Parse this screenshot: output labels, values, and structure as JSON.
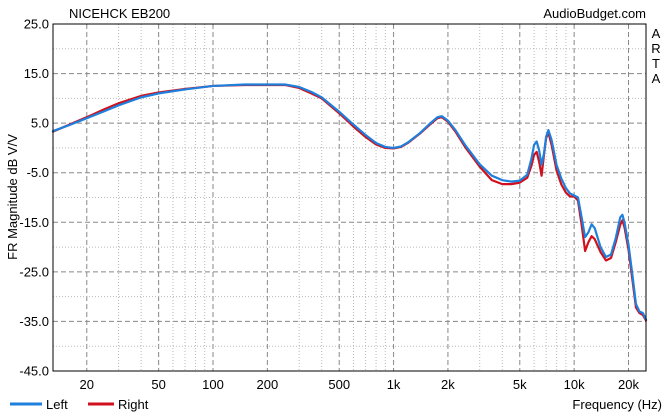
{
  "chart_data": {
    "type": "line",
    "title": "NICEHCK EB200",
    "watermark": "AudioBudget.com",
    "side_label": "ARTA",
    "xlabel": "Frequency (Hz)",
    "ylabel": "FR Magnitude dB V/V",
    "x_scale": "log",
    "xlim": [
      13,
      25000
    ],
    "ylim": [
      -45,
      25
    ],
    "x_ticks": [
      {
        "value": 20,
        "label": "20"
      },
      {
        "value": 50,
        "label": "50"
      },
      {
        "value": 100,
        "label": "100"
      },
      {
        "value": 200,
        "label": "200"
      },
      {
        "value": 500,
        "label": "500"
      },
      {
        "value": 1000,
        "label": "1k"
      },
      {
        "value": 2000,
        "label": "2k"
      },
      {
        "value": 5000,
        "label": "5k"
      },
      {
        "value": 10000,
        "label": "10k"
      },
      {
        "value": 20000,
        "label": "20k"
      }
    ],
    "y_ticks": [
      {
        "value": 25,
        "label": "25.0"
      },
      {
        "value": 15,
        "label": "15.0"
      },
      {
        "value": 5,
        "label": "5.0"
      },
      {
        "value": -5,
        "label": "-5.0"
      },
      {
        "value": -15,
        "label": "-15.0"
      },
      {
        "value": -25,
        "label": "-25.0"
      },
      {
        "value": -35,
        "label": "-35.0"
      },
      {
        "value": -45,
        "label": "-45.0"
      }
    ],
    "grid": true,
    "legend_position": "bottom-left",
    "series": [
      {
        "name": "Left",
        "color": "#1f7fdc",
        "points": [
          [
            13,
            3.4
          ],
          [
            16,
            4.6
          ],
          [
            20,
            6.0
          ],
          [
            25,
            7.4
          ],
          [
            30,
            8.6
          ],
          [
            40,
            10.2
          ],
          [
            50,
            11.0
          ],
          [
            70,
            11.8
          ],
          [
            100,
            12.5
          ],
          [
            150,
            12.8
          ],
          [
            200,
            12.8
          ],
          [
            250,
            12.8
          ],
          [
            300,
            12.3
          ],
          [
            350,
            11.3
          ],
          [
            400,
            10.2
          ],
          [
            500,
            7.3
          ],
          [
            600,
            4.7
          ],
          [
            700,
            2.6
          ],
          [
            800,
            1.0
          ],
          [
            900,
            0.2
          ],
          [
            1000,
            0.0
          ],
          [
            1100,
            0.3
          ],
          [
            1200,
            1.1
          ],
          [
            1400,
            3.0
          ],
          [
            1600,
            5.0
          ],
          [
            1750,
            6.2
          ],
          [
            1850,
            6.4
          ],
          [
            2000,
            5.5
          ],
          [
            2200,
            3.6
          ],
          [
            2500,
            0.5
          ],
          [
            3000,
            -3.3
          ],
          [
            3500,
            -5.6
          ],
          [
            4000,
            -6.5
          ],
          [
            4500,
            -6.8
          ],
          [
            5000,
            -6.6
          ],
          [
            5500,
            -5.4
          ],
          [
            5800,
            -2.2
          ],
          [
            6000,
            0.6
          ],
          [
            6200,
            1.3
          ],
          [
            6400,
            -0.5
          ],
          [
            6600,
            -3.4
          ],
          [
            6800,
            -1.2
          ],
          [
            7000,
            2.3
          ],
          [
            7200,
            3.6
          ],
          [
            7500,
            1.6
          ],
          [
            8000,
            -3.5
          ],
          [
            8500,
            -6.2
          ],
          [
            9000,
            -8.1
          ],
          [
            9500,
            -9.2
          ],
          [
            10000,
            -9.6
          ],
          [
            10500,
            -10.0
          ],
          [
            11000,
            -14.0
          ],
          [
            11500,
            -18.0
          ],
          [
            12000,
            -17.0
          ],
          [
            12500,
            -15.4
          ],
          [
            13000,
            -16.2
          ],
          [
            14000,
            -20.0
          ],
          [
            15000,
            -22.0
          ],
          [
            16000,
            -21.5
          ],
          [
            17000,
            -18.2
          ],
          [
            18000,
            -14.0
          ],
          [
            18500,
            -13.5
          ],
          [
            19000,
            -15.0
          ],
          [
            20000,
            -19.5
          ],
          [
            21000,
            -25.5
          ],
          [
            22000,
            -31.5
          ],
          [
            23000,
            -33.0
          ],
          [
            24000,
            -33.3
          ],
          [
            25000,
            -34.6
          ]
        ]
      },
      {
        "name": "Right",
        "color": "#d0101c",
        "points": [
          [
            13,
            3.3
          ],
          [
            16,
            4.7
          ],
          [
            20,
            6.2
          ],
          [
            25,
            7.8
          ],
          [
            30,
            9.0
          ],
          [
            40,
            10.5
          ],
          [
            50,
            11.2
          ],
          [
            70,
            11.9
          ],
          [
            100,
            12.5
          ],
          [
            150,
            12.7
          ],
          [
            200,
            12.7
          ],
          [
            250,
            12.7
          ],
          [
            300,
            12.1
          ],
          [
            350,
            11.0
          ],
          [
            400,
            10.0
          ],
          [
            500,
            7.0
          ],
          [
            600,
            4.3
          ],
          [
            700,
            2.2
          ],
          [
            800,
            0.7
          ],
          [
            900,
            0.0
          ],
          [
            1000,
            -0.1
          ],
          [
            1100,
            0.2
          ],
          [
            1200,
            1.0
          ],
          [
            1400,
            2.9
          ],
          [
            1600,
            4.8
          ],
          [
            1750,
            6.0
          ],
          [
            1850,
            6.2
          ],
          [
            2000,
            5.3
          ],
          [
            2200,
            3.3
          ],
          [
            2500,
            0.1
          ],
          [
            3000,
            -3.8
          ],
          [
            3500,
            -6.5
          ],
          [
            4000,
            -7.3
          ],
          [
            4500,
            -7.3
          ],
          [
            5000,
            -7.0
          ],
          [
            5500,
            -6.0
          ],
          [
            5800,
            -3.6
          ],
          [
            6000,
            -1.4
          ],
          [
            6200,
            -0.8
          ],
          [
            6400,
            -2.8
          ],
          [
            6600,
            -5.6
          ],
          [
            6800,
            -1.5
          ],
          [
            7000,
            2.0
          ],
          [
            7200,
            3.1
          ],
          [
            7500,
            0.6
          ],
          [
            8000,
            -4.6
          ],
          [
            8500,
            -7.4
          ],
          [
            9000,
            -9.0
          ],
          [
            9500,
            -9.8
          ],
          [
            10000,
            -9.8
          ],
          [
            10500,
            -10.6
          ],
          [
            11000,
            -15.5
          ],
          [
            11500,
            -20.8
          ],
          [
            12000,
            -19.0
          ],
          [
            12500,
            -17.8
          ],
          [
            13000,
            -18.4
          ],
          [
            14000,
            -21.0
          ],
          [
            15000,
            -22.7
          ],
          [
            16000,
            -22.2
          ],
          [
            17000,
            -19.0
          ],
          [
            18000,
            -15.5
          ],
          [
            18500,
            -14.6
          ],
          [
            19000,
            -16.0
          ],
          [
            20000,
            -20.5
          ],
          [
            21000,
            -26.5
          ],
          [
            22000,
            -32.2
          ],
          [
            23000,
            -33.3
          ],
          [
            24000,
            -33.7
          ],
          [
            25000,
            -34.8
          ]
        ]
      }
    ]
  }
}
